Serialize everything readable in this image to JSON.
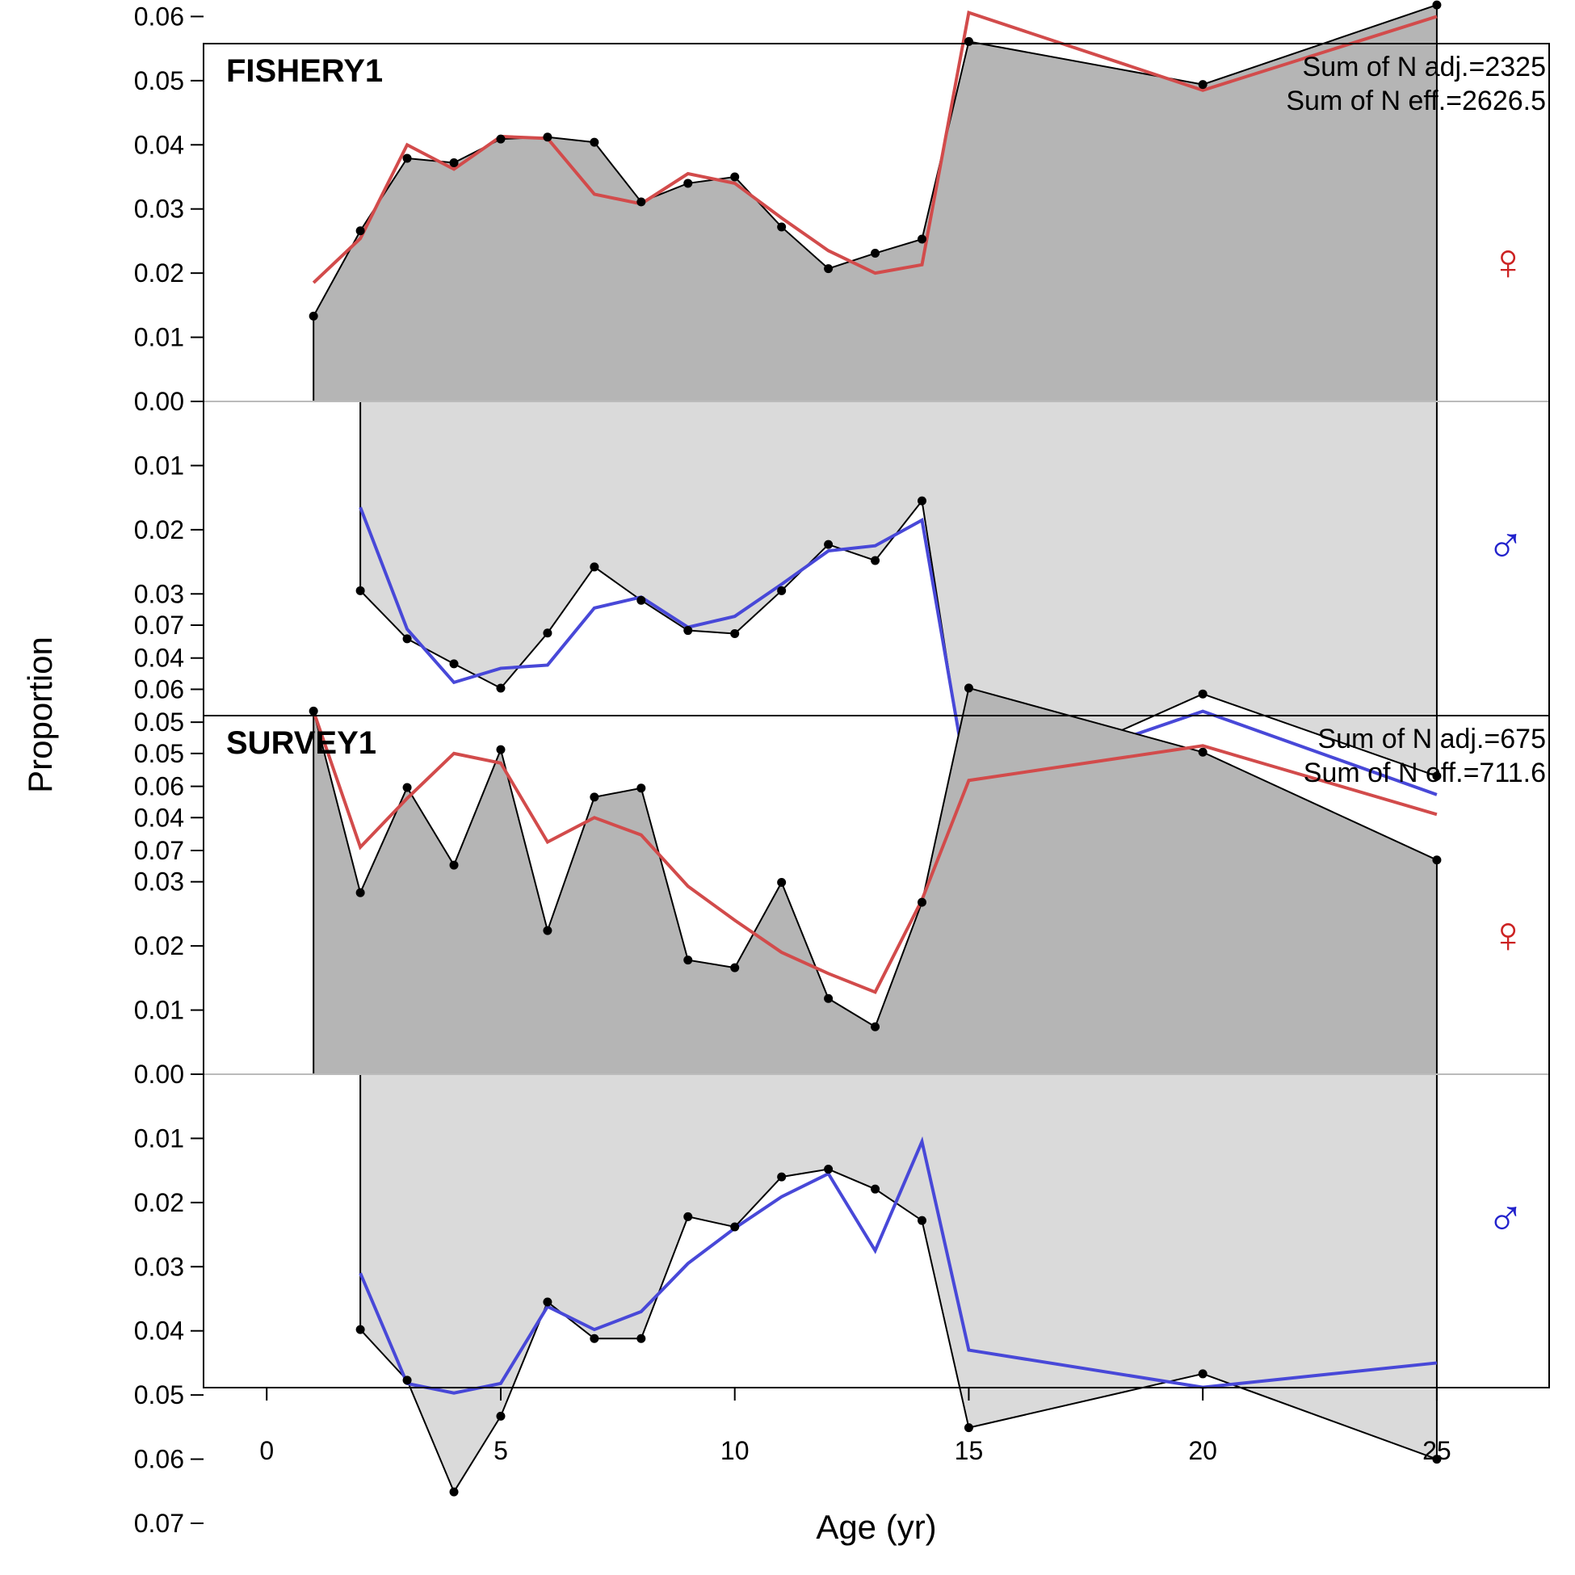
{
  "chart_data": {
    "type": "area",
    "xlabel": "Age (yr)",
    "ylabel": "Proportion",
    "xlim": [
      -1.35,
      27.4
    ],
    "xticks": [
      0,
      5,
      10,
      15,
      20,
      25
    ],
    "ylim_each_side": [
      0,
      0.07
    ],
    "yticks": [
      0.07,
      0.06,
      0.05,
      0.04,
      0.03,
      0.02,
      0.01,
      0.0,
      0.01,
      0.02,
      0.03,
      0.04,
      0.05,
      0.06,
      0.07
    ],
    "colors": {
      "female_fill": "#b5b5b5",
      "male_fill": "#dadada",
      "female_expected": "#d24b4b",
      "male_expected": "#4848d8",
      "observed": "#000000",
      "zero_line": "#bbbbbb",
      "female_symbol": "#cc2222",
      "male_symbol": "#2222cc"
    },
    "sex_symbols": {
      "female": "♀",
      "male": "♂"
    },
    "panels": [
      {
        "title": "FISHERY1",
        "stat_adj": "Sum of N adj.=2325",
        "stat_eff": "Sum of N eff.=2626.5",
        "female": {
          "ages": [
            1,
            2,
            3,
            4,
            5,
            6,
            7,
            8,
            9,
            10,
            11,
            12,
            13,
            14,
            15,
            20,
            25
          ],
          "observed": [
            0.0133,
            0.0266,
            0.0379,
            0.0372,
            0.0409,
            0.0412,
            0.0404,
            0.0311,
            0.034,
            0.035,
            0.0272,
            0.0207,
            0.0231,
            0.0253,
            0.0561,
            0.0494,
            0.0618
          ],
          "expected": [
            0.0185,
            0.0254,
            0.04,
            0.0362,
            0.0413,
            0.041,
            0.0323,
            0.0308,
            0.0355,
            0.034,
            0.0286,
            0.0235,
            0.02,
            0.0213,
            0.0606,
            0.0485,
            0.06
          ]
        },
        "male": {
          "ages": [
            2,
            3,
            4,
            5,
            6,
            7,
            8,
            9,
            10,
            11,
            12,
            13,
            14,
            15,
            20,
            25
          ],
          "observed": [
            0.0295,
            0.037,
            0.0409,
            0.0447,
            0.0361,
            0.0258,
            0.031,
            0.0357,
            0.0362,
            0.0295,
            0.0223,
            0.0248,
            0.0155,
            0.0619,
            0.0456,
            0.0584
          ],
          "expected": [
            0.0165,
            0.0355,
            0.0438,
            0.0416,
            0.0411,
            0.0322,
            0.0305,
            0.0352,
            0.0335,
            0.0285,
            0.0233,
            0.0225,
            0.0185,
            0.0608,
            0.0483,
            0.0613
          ]
        }
      },
      {
        "title": "SURVEY1",
        "stat_adj": "Sum of N adj.=675",
        "stat_eff": "Sum of N eff.=711.6",
        "female": {
          "ages": [
            1,
            2,
            3,
            4,
            5,
            6,
            7,
            8,
            9,
            10,
            11,
            12,
            13,
            14,
            15,
            20,
            25
          ],
          "observed": [
            0.0566,
            0.0283,
            0.0447,
            0.0326,
            0.0506,
            0.0224,
            0.0432,
            0.0446,
            0.0178,
            0.0166,
            0.0299,
            0.0118,
            0.0074,
            0.0268,
            0.0602,
            0.0502,
            0.0334
          ],
          "expected": [
            0.0566,
            0.0354,
            0.043,
            0.05,
            0.0485,
            0.0362,
            0.04,
            0.0373,
            0.0293,
            0.024,
            0.019,
            0.0157,
            0.0128,
            0.0272,
            0.0458,
            0.0512,
            0.0405
          ]
        },
        "male": {
          "ages": [
            2,
            3,
            4,
            5,
            6,
            7,
            8,
            9,
            10,
            11,
            12,
            13,
            14,
            15,
            20,
            25
          ],
          "observed": [
            0.0398,
            0.0477,
            0.0651,
            0.0533,
            0.0355,
            0.0412,
            0.0412,
            0.0222,
            0.0238,
            0.016,
            0.0148,
            0.0179,
            0.0228,
            0.0551,
            0.0467,
            0.06
          ],
          "expected": [
            0.031,
            0.0482,
            0.0497,
            0.0482,
            0.0362,
            0.0398,
            0.037,
            0.0295,
            0.024,
            0.0191,
            0.0155,
            0.0275,
            0.0105,
            0.043,
            0.0488,
            0.045
          ]
        }
      }
    ]
  }
}
